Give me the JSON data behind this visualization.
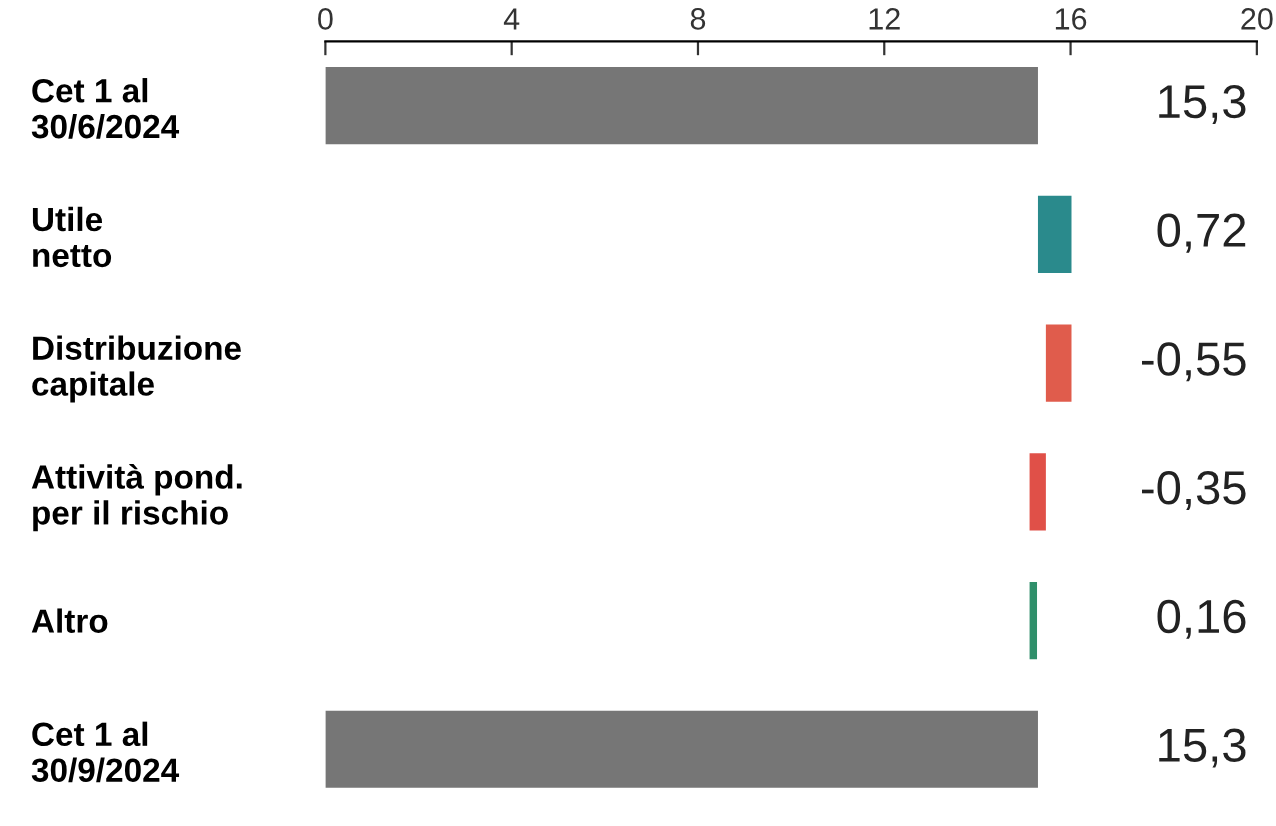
{
  "chart_data": {
    "type": "bar",
    "orientation": "horizontal",
    "categories": [
      "Cet 1 al\n30/6/2024",
      "Utile\nnetto",
      "Distribuzione\ncapitale",
      "Attività pond.\nper il rischio",
      "Altro",
      "Cet 1 al\n30/9/2024"
    ],
    "values": [
      15.3,
      0.72,
      -0.55,
      -0.35,
      0.16,
      15.3
    ],
    "base": [
      0,
      15.3,
      16.02,
      15.47,
      15.12,
      0
    ],
    "colors": [
      "#767676",
      "#2a8a8c",
      "#e05c4c",
      "#e05048",
      "#2f8f6a",
      "#767676"
    ],
    "value_labels": [
      "15,3",
      "0,72",
      "-0,55",
      "-0,35",
      "0,16",
      "15,3"
    ],
    "xlim": [
      0,
      20
    ],
    "xticks": [
      0,
      4,
      8,
      12,
      16,
      20
    ],
    "grid": false
  }
}
